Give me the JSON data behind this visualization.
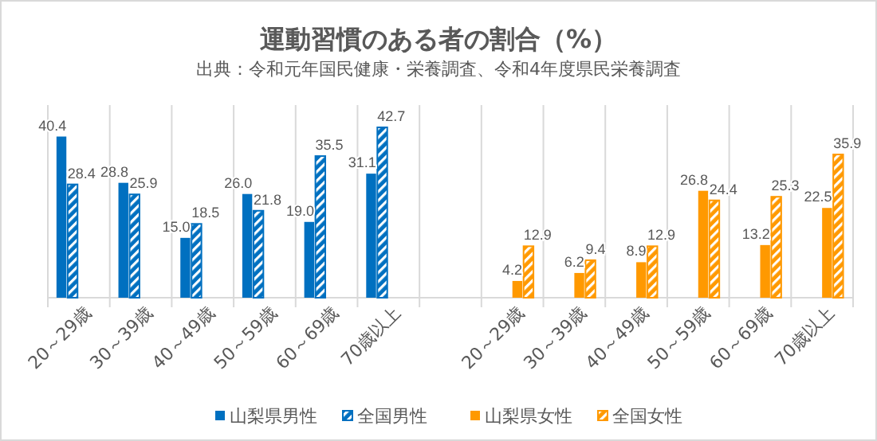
{
  "chart_data": {
    "type": "bar",
    "title": "運動習慣のある者の割合（%）",
    "subtitle": "出典：令和元年国民健康・栄養調査、令和4年度県民栄養調査",
    "categories": [
      "20～29歳",
      "30～39歳",
      "40～49歳",
      "50～59歳",
      "60～69歳",
      "70歳以上",
      null,
      "20～29歳",
      "30～39歳",
      "40～49歳",
      "50～59歳",
      "60～69歳",
      "70歳以上"
    ],
    "series": [
      {
        "name": "山梨県男性",
        "color": "#0070c0",
        "values": [
          40.4,
          28.8,
          15.0,
          26.0,
          19.0,
          31.1,
          null,
          null,
          null,
          null,
          null,
          null,
          null
        ],
        "value_labels": [
          "40.4",
          "28.8",
          "15.0",
          "26.0",
          "19.0",
          "31.1",
          null,
          null,
          null,
          null,
          null,
          null,
          null
        ]
      },
      {
        "name": "全国男性",
        "color": "#0070c0",
        "values": [
          28.4,
          25.9,
          18.5,
          21.8,
          35.5,
          42.7,
          null,
          null,
          null,
          null,
          null,
          null,
          null
        ],
        "value_labels": [
          "28.4",
          "25.9",
          "18.5",
          "21.8",
          "35.5",
          "42.7",
          null,
          null,
          null,
          null,
          null,
          null,
          null
        ]
      },
      {
        "name": "山梨県女性",
        "color": "#ff9900",
        "values": [
          null,
          null,
          null,
          null,
          null,
          null,
          null,
          4.2,
          6.2,
          8.9,
          26.8,
          13.2,
          22.5
        ],
        "value_labels": [
          null,
          null,
          null,
          null,
          null,
          null,
          null,
          "4.2",
          "6.2",
          "8.9",
          "26.8",
          "13.2",
          "22.5"
        ]
      },
      {
        "name": "全国女性",
        "color": "#ff9900",
        "values": [
          null,
          null,
          null,
          null,
          null,
          null,
          null,
          12.9,
          9.4,
          12.9,
          24.4,
          25.3,
          35.9
        ],
        "value_labels": [
          null,
          null,
          null,
          null,
          null,
          null,
          null,
          "12.9",
          "9.4",
          "12.9",
          "24.4",
          "25.3",
          "35.9"
        ]
      }
    ],
    "data_labels": true,
    "grid": "x",
    "legend": "bottom"
  }
}
